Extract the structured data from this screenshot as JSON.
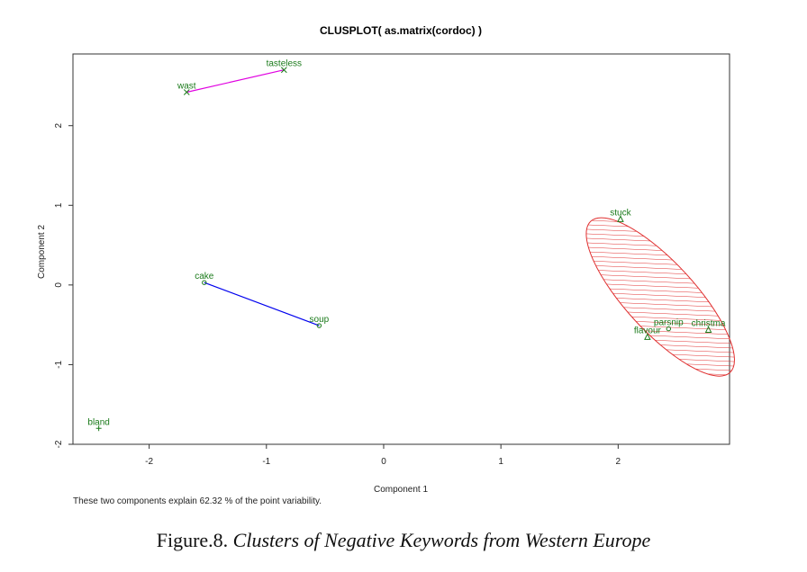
{
  "chart_data": {
    "type": "scatter",
    "title": "CLUSPLOT( as.matrix(cordoc) )",
    "xlabel": "Component 1",
    "ylabel": "Component 2",
    "xlim": [
      -2.65,
      2.95
    ],
    "ylim": [
      -2.0,
      2.9
    ],
    "x_ticks": [
      -2,
      -1,
      0,
      1,
      2
    ],
    "y_ticks": [
      -2,
      -1,
      0,
      1,
      2
    ],
    "footnote": "These two components explain 62.32 % of the point variability.",
    "grid": false,
    "points": [
      {
        "label": "tasteless",
        "x": -0.85,
        "y": 2.7,
        "marker": "x",
        "color": "#1a7a1a"
      },
      {
        "label": "wast",
        "x": -1.68,
        "y": 2.42,
        "marker": "x",
        "color": "#1a7a1a"
      },
      {
        "label": "cake",
        "x": -1.53,
        "y": 0.03,
        "marker": "o",
        "color": "#1a7a1a"
      },
      {
        "label": "soup",
        "x": -0.55,
        "y": -0.51,
        "marker": "o",
        "color": "#1a7a1a"
      },
      {
        "label": "stuck",
        "x": 2.02,
        "y": 0.83,
        "marker": "^",
        "color": "#1a7a1a"
      },
      {
        "label": "parsnip",
        "x": 2.43,
        "y": -0.55,
        "marker": "o",
        "color": "#1a7a1a"
      },
      {
        "label": "christma",
        "x": 2.77,
        "y": -0.56,
        "marker": "^",
        "color": "#1a7a1a"
      },
      {
        "label": "flavour",
        "x": 2.25,
        "y": -0.65,
        "marker": "^",
        "color": "#1a7a1a"
      },
      {
        "label": "bland",
        "x": -2.43,
        "y": -1.8,
        "marker": "+",
        "color": "#1a7a1a"
      }
    ],
    "cluster_links": [
      {
        "from": [
          -1.68,
          2.42
        ],
        "to": [
          -0.85,
          2.7
        ],
        "color": "#e000e0"
      },
      {
        "from": [
          -1.53,
          0.03
        ],
        "to": [
          -0.55,
          -0.51
        ],
        "color": "#0000ee"
      }
    ],
    "cluster_ellipses": [
      {
        "center": [
          2.36,
          -0.15
        ],
        "semi_major": 1.12,
        "semi_minor": 0.32,
        "angle_deg": -58,
        "color": "#e03030",
        "fill": "hatched"
      }
    ]
  },
  "caption": {
    "prefix": "Figure.8.",
    "title": "Clusters of Negative Keywords from Western Europe"
  }
}
